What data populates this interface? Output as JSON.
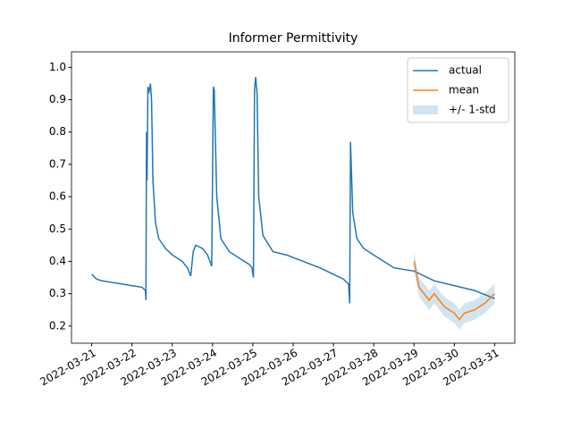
{
  "chart_data": {
    "type": "line",
    "title": "Informer Permittivity",
    "xlim": [
      "2022-03-20T12:00",
      "2022-03-31T12:00"
    ],
    "ylim": [
      0.147,
      1.048
    ],
    "xticks": [
      "2022-03-21",
      "2022-03-22",
      "2022-03-23",
      "2022-03-24",
      "2022-03-25",
      "2022-03-26",
      "2022-03-27",
      "2022-03-28",
      "2022-03-29",
      "2022-03-30",
      "2022-03-31"
    ],
    "yticks": [
      0.2,
      0.3,
      0.4,
      0.5,
      0.6,
      0.7,
      0.8,
      0.9,
      {
        "value": 1,
        "label": "1.0"
      }
    ],
    "legend": "upper right",
    "series": [
      {
        "name": "actual",
        "color": "#1f77b4",
        "x": [
          "2022-03-21T00:00",
          "2022-03-21T03:00",
          "2022-03-21T06:00",
          "2022-03-21T12:00",
          "2022-03-21T18:00",
          "2022-03-22T00:00",
          "2022-03-22T06:00",
          "2022-03-22T08:00",
          "2022-03-22T08:20",
          "2022-03-22T08:40",
          "2022-03-22T09:00",
          "2022-03-22T09:30",
          "2022-03-22T10:00",
          "2022-03-22T11:00",
          "2022-03-22T11:40",
          "2022-03-22T12:30",
          "2022-03-22T14:00",
          "2022-03-22T16:00",
          "2022-03-22T20:00",
          "2022-03-23T00:00",
          "2022-03-23T06:00",
          "2022-03-23T09:00",
          "2022-03-23T11:00",
          "2022-03-23T12:30",
          "2022-03-23T14:00",
          "2022-03-23T18:00",
          "2022-03-23T21:00",
          "2022-03-23T23:30",
          "2022-03-24T00:30",
          "2022-03-24T01:00",
          "2022-03-24T02:30",
          "2022-03-24T05:00",
          "2022-03-24T10:00",
          "2022-03-24T16:00",
          "2022-03-24T22:00",
          "2022-03-24T23:30",
          "2022-03-25T00:20",
          "2022-03-25T01:00",
          "2022-03-25T01:40",
          "2022-03-25T02:30",
          "2022-03-25T03:30",
          "2022-03-25T06:00",
          "2022-03-25T12:00",
          "2022-03-25T20:00",
          "2022-03-26T06:00",
          "2022-03-26T16:00",
          "2022-03-27T00:00",
          "2022-03-27T06:00",
          "2022-03-27T09:00",
          "2022-03-27T09:40",
          "2022-03-27T10:10",
          "2022-03-27T11:30",
          "2022-03-27T14:00",
          "2022-03-27T18:00",
          "2022-03-28T00:00",
          "2022-03-28T12:00",
          "2022-03-29T00:00",
          "2022-03-29T12:00",
          "2022-03-30T00:00",
          "2022-03-30T12:00",
          "2022-03-31T00:00"
        ],
        "values": [
          0.36,
          0.345,
          0.34,
          0.335,
          0.33,
          0.325,
          0.32,
          0.31,
          0.28,
          0.8,
          0.65,
          0.94,
          0.92,
          0.95,
          0.9,
          0.65,
          0.52,
          0.47,
          0.44,
          0.42,
          0.4,
          0.38,
          0.355,
          0.43,
          0.45,
          0.44,
          0.42,
          0.385,
          0.94,
          0.93,
          0.6,
          0.47,
          0.43,
          0.41,
          0.39,
          0.38,
          0.35,
          0.93,
          0.97,
          0.92,
          0.6,
          0.48,
          0.43,
          0.42,
          0.4,
          0.38,
          0.36,
          0.345,
          0.33,
          0.27,
          0.77,
          0.55,
          0.47,
          0.44,
          0.42,
          0.38,
          0.37,
          0.34,
          0.325,
          0.31,
          0.285
        ]
      },
      {
        "name": "mean",
        "color": "#ff7f0e",
        "x": [
          "2022-03-29T00:00",
          "2022-03-29T03:00",
          "2022-03-29T06:00",
          "2022-03-29T09:00",
          "2022-03-29T12:00",
          "2022-03-29T18:00",
          "2022-03-30T00:00",
          "2022-03-30T03:00",
          "2022-03-30T06:00",
          "2022-03-30T12:00",
          "2022-03-30T18:00",
          "2022-03-31T00:00"
        ],
        "values": [
          0.4,
          0.32,
          0.3,
          0.28,
          0.3,
          0.26,
          0.24,
          0.22,
          0.24,
          0.25,
          0.27,
          0.3
        ]
      }
    ],
    "band": {
      "name": "+/- 1-std",
      "color": "#1f77b4",
      "x": [
        "2022-03-29T00:00",
        "2022-03-29T03:00",
        "2022-03-29T06:00",
        "2022-03-29T09:00",
        "2022-03-29T12:00",
        "2022-03-29T18:00",
        "2022-03-30T00:00",
        "2022-03-30T03:00",
        "2022-03-30T06:00",
        "2022-03-30T12:00",
        "2022-03-30T18:00",
        "2022-03-31T00:00"
      ],
      "lower": [
        0.37,
        0.29,
        0.27,
        0.25,
        0.27,
        0.23,
        0.21,
        0.19,
        0.21,
        0.22,
        0.24,
        0.27
      ],
      "upper": [
        0.43,
        0.35,
        0.33,
        0.31,
        0.33,
        0.29,
        0.27,
        0.25,
        0.27,
        0.28,
        0.3,
        0.33
      ]
    }
  }
}
